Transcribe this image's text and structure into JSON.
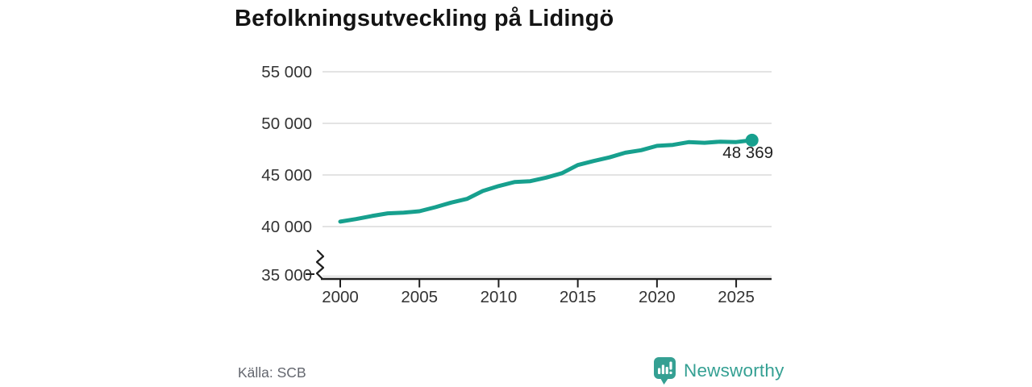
{
  "header": {
    "title": "Befolkningsutveckling på Lidingö"
  },
  "chart_data": {
    "type": "line",
    "title": "Befolkningsutveckling på Lidingö",
    "x": [
      2000,
      2001,
      2002,
      2003,
      2004,
      2005,
      2006,
      2007,
      2008,
      2009,
      2010,
      2011,
      2012,
      2013,
      2014,
      2015,
      2016,
      2017,
      2018,
      2019,
      2020,
      2021,
      2022,
      2023,
      2024,
      2025,
      2026
    ],
    "values": [
      40474,
      40726,
      41027,
      41278,
      41344,
      41483,
      41872,
      42322,
      42679,
      43445,
      43925,
      44310,
      44400,
      44742,
      45168,
      45960,
      46351,
      46702,
      47158,
      47395,
      47818,
      47912,
      48180,
      48114,
      48230,
      48190,
      48369
    ],
    "x_ticks": [
      "2000",
      "2005",
      "2010",
      "2015",
      "2020",
      "2025"
    ],
    "x_tick_years": [
      2000,
      2005,
      2010,
      2015,
      2020,
      2025
    ],
    "y_ticks": [
      "55 000",
      "50 000",
      "45 000",
      "40 000",
      "35 000"
    ],
    "y_tick_values": [
      55000,
      50000,
      45000,
      40000,
      35000
    ],
    "ylim": [
      35000,
      55000
    ],
    "xlim": [
      2000,
      2027
    ],
    "axis_break": true,
    "grid": "horizontal",
    "legend": "none",
    "end_label": "48 369",
    "end_value": 48369
  },
  "footer": {
    "source": "Källa: SCB",
    "brand": "Newsworthy"
  },
  "colors": {
    "line": "#17a08e",
    "brand": "#35a093",
    "grid": "#dadada",
    "axis": "#1f1f1f",
    "tick_text": "#333333",
    "annotation_text": "#1f1f1f",
    "source_text": "#63666e",
    "title_text": "#141414"
  }
}
